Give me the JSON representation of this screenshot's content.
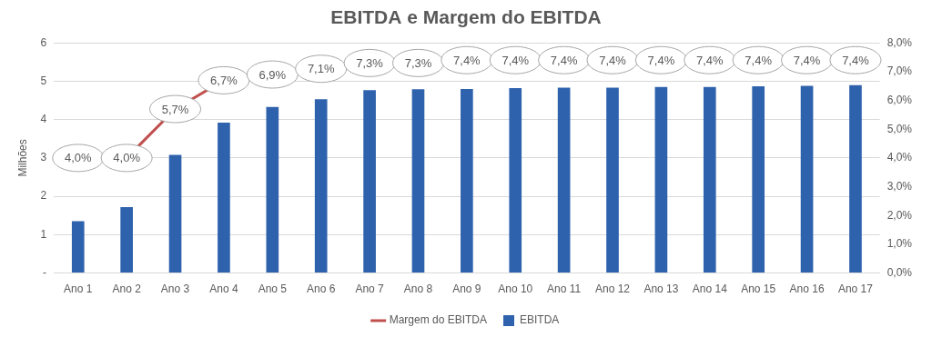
{
  "chart_data": {
    "type": "bar",
    "title": "EBITDA e Margem do EBITDA",
    "categories": [
      "Ano 1",
      "Ano 2",
      "Ano 3",
      "Ano 4",
      "Ano 5",
      "Ano 6",
      "Ano 7",
      "Ano 8",
      "Ano 9",
      "Ano 10",
      "Ano 11",
      "Ano 12",
      "Ano 13",
      "Ano 14",
      "Ano 15",
      "Ano 16",
      "Ano 17"
    ],
    "ylabel": "Milhões",
    "ylim": [
      0,
      6
    ],
    "yticks": [
      {
        "value": 0,
        "label": "-"
      },
      1,
      2,
      3,
      4,
      5,
      6
    ],
    "y2lim": [
      0,
      8
    ],
    "y2ticks": [
      {
        "value": 0,
        "label": "0,0%"
      },
      {
        "value": 1,
        "label": "1,0%"
      },
      {
        "value": 2,
        "label": "2,0%"
      },
      {
        "value": 3,
        "label": "3,0%"
      },
      {
        "value": 4,
        "label": "4,0%"
      },
      {
        "value": 5,
        "label": "5,0%"
      },
      {
        "value": 6,
        "label": "6,0%"
      },
      {
        "value": 7,
        "label": "7,0%"
      },
      {
        "value": 8,
        "label": "8,0%"
      }
    ],
    "grid": true,
    "legend": "bottom",
    "series": [
      {
        "name": "EBITDA",
        "type": "bar",
        "color": "#2f62ad",
        "values": [
          1.35,
          1.72,
          3.08,
          3.92,
          4.33,
          4.53,
          4.77,
          4.79,
          4.8,
          4.82,
          4.83,
          4.83,
          4.85,
          4.85,
          4.87,
          4.88,
          4.9
        ]
      },
      {
        "name": "Margem do EBITDA",
        "type": "line",
        "axis": "y2",
        "color": "#c0504d",
        "marker": "none",
        "data_labels": true,
        "values": [
          4.0,
          4.0,
          5.7,
          6.7,
          6.9,
          7.1,
          7.3,
          7.3,
          7.4,
          7.4,
          7.4,
          7.4,
          7.4,
          7.4,
          7.4,
          7.4,
          7.4
        ],
        "value_labels": [
          "4,0%",
          "4,0%",
          "5,7%",
          "6,7%",
          "6,9%",
          "7,1%",
          "7,3%",
          "7,3%",
          "7,4%",
          "7,4%",
          "7,4%",
          "7,4%",
          "7,4%",
          "7,4%",
          "7,4%",
          "7,4%",
          "7,4%"
        ]
      }
    ]
  }
}
